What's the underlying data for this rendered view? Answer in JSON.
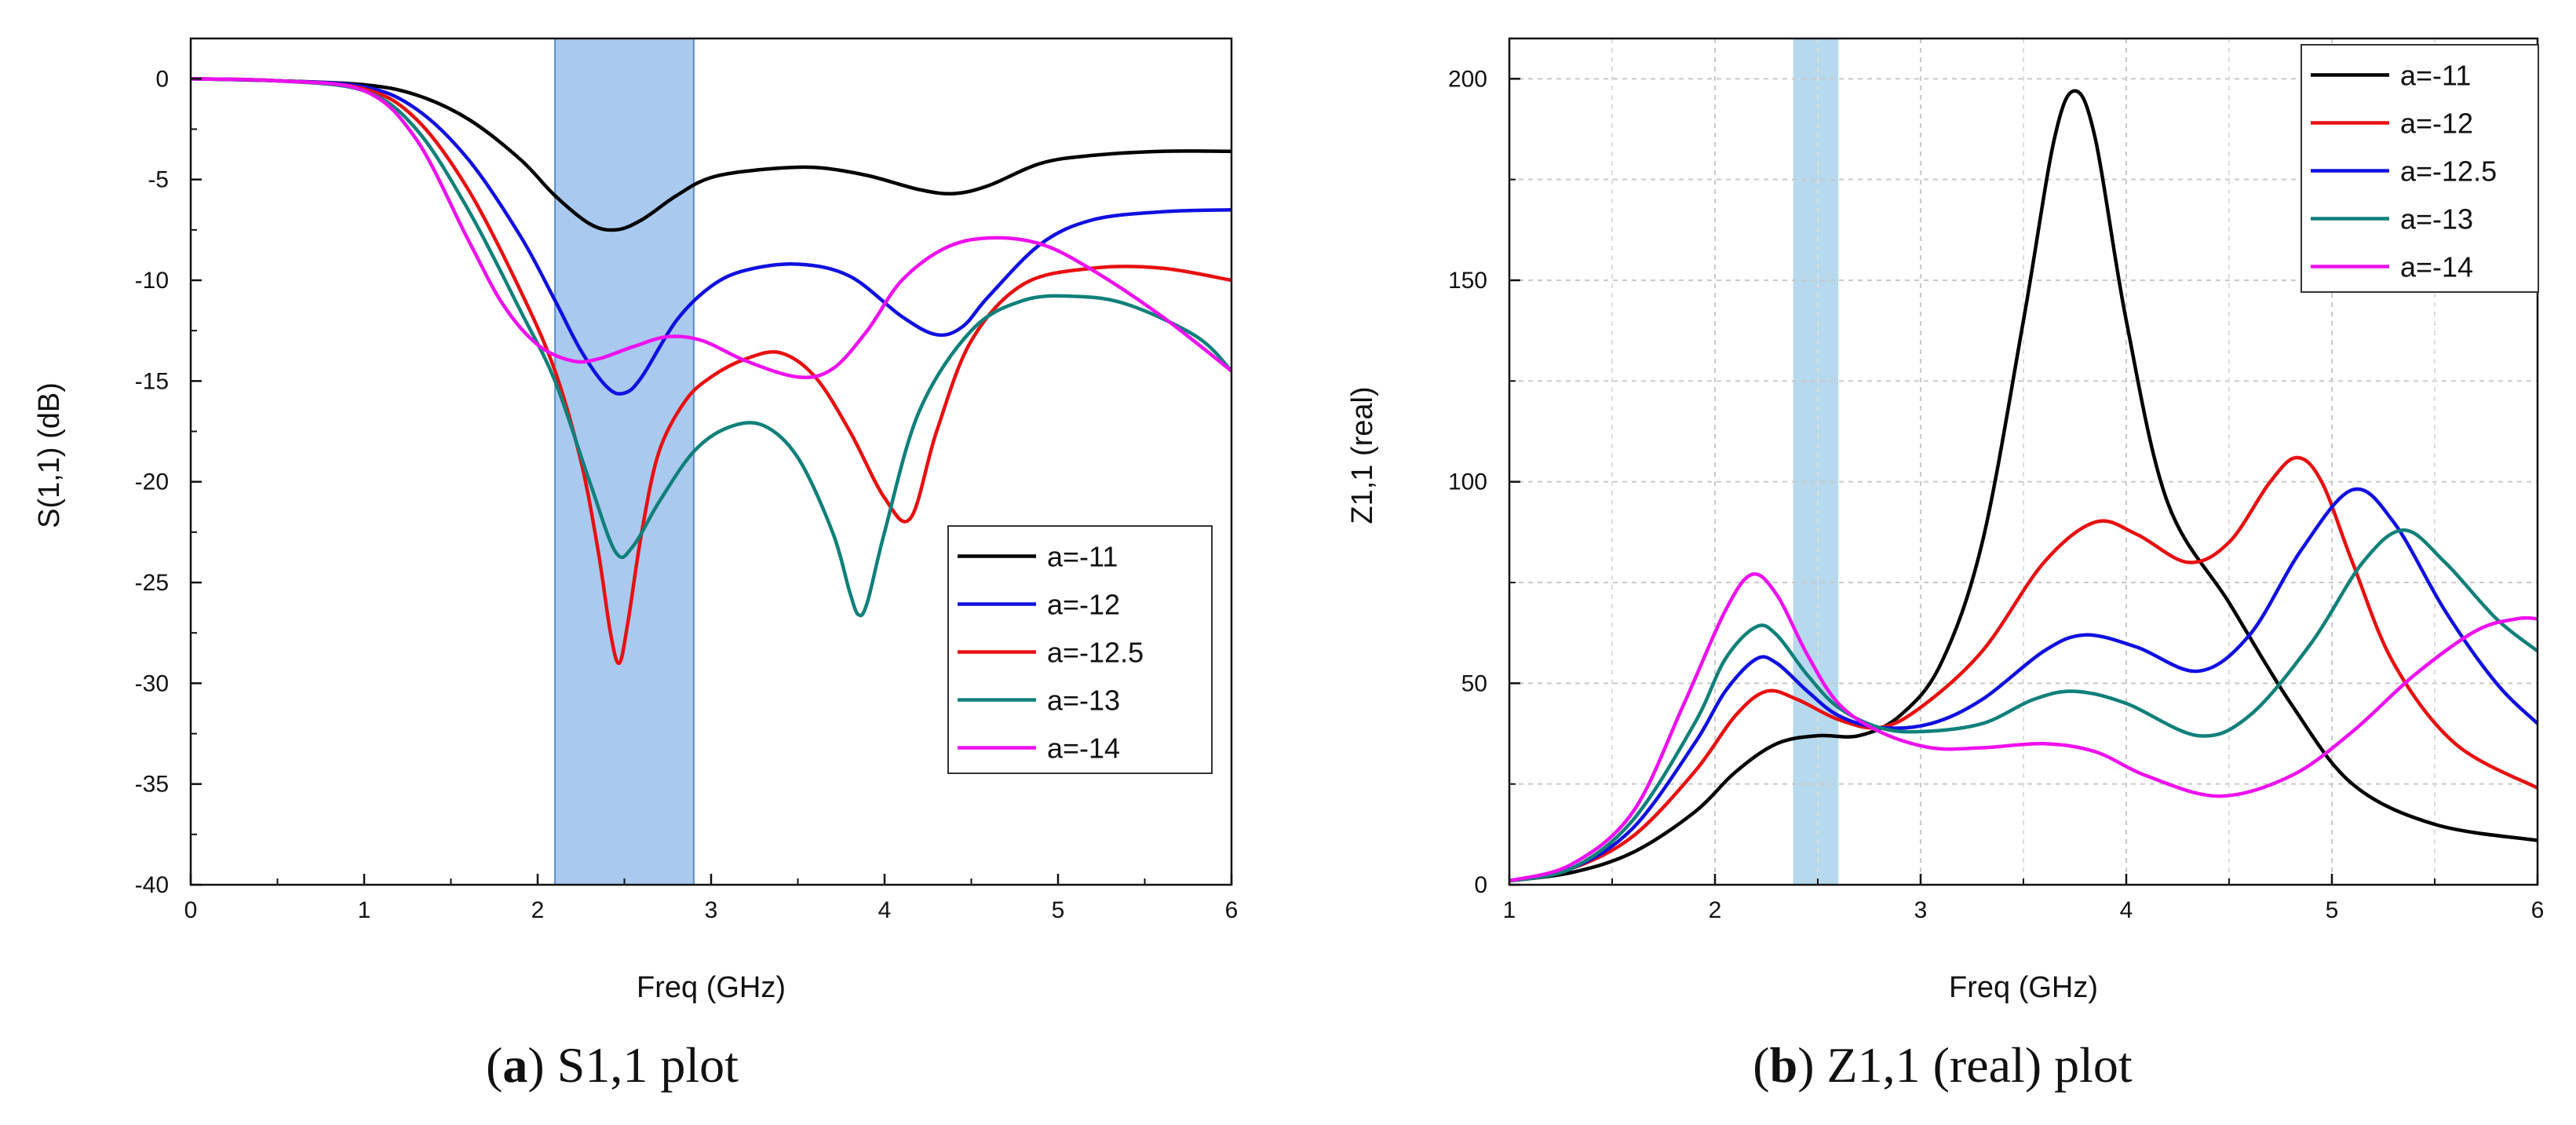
{
  "chart_data": [
    {
      "type": "line",
      "caption_letter": "a",
      "caption_text": "S1,1 plot",
      "xlabel": "Freq (GHz)",
      "ylabel": "S(1,1) (dB)",
      "xlim": [
        0,
        6
      ],
      "ylim": [
        -40,
        2
      ],
      "xticks": [
        0,
        1,
        2,
        3,
        4,
        5,
        6
      ],
      "yticks": [
        0,
        -5,
        -10,
        -15,
        -20,
        -25,
        -30,
        -35,
        -40
      ],
      "grid": false,
      "legend_position": "lower-right",
      "band": {
        "x0": 2.1,
        "x1": 2.9,
        "color": "#a9c9ee"
      },
      "series": [
        {
          "name": "a=-11",
          "color": "#000000",
          "x": [
            0,
            0.5,
            1,
            1.3,
            1.6,
            1.9,
            2.1,
            2.3,
            2.45,
            2.6,
            2.8,
            3,
            3.3,
            3.6,
            3.9,
            4.2,
            4.4,
            4.6,
            4.9,
            5.2,
            5.6,
            6
          ],
          "y": [
            0,
            -0.1,
            -0.3,
            -0.8,
            -2,
            -4,
            -5.8,
            -7.2,
            -7.5,
            -7,
            -5.8,
            -4.9,
            -4.5,
            -4.4,
            -4.8,
            -5.5,
            -5.7,
            -5.3,
            -4.2,
            -3.8,
            -3.6,
            -3.6
          ]
        },
        {
          "name": "a=-12",
          "color": "#1010e0",
          "x": [
            0,
            0.5,
            1,
            1.3,
            1.6,
            1.9,
            2.1,
            2.25,
            2.4,
            2.5,
            2.6,
            2.8,
            3,
            3.2,
            3.5,
            3.8,
            4.1,
            4.3,
            4.45,
            4.6,
            4.9,
            5.2,
            5.6,
            6
          ],
          "y": [
            0,
            -0.1,
            -0.4,
            -1.5,
            -4,
            -7.8,
            -11,
            -13.5,
            -15.3,
            -15.6,
            -14.8,
            -12,
            -10.3,
            -9.5,
            -9.2,
            -9.8,
            -11.8,
            -12.7,
            -12.3,
            -10.8,
            -8.2,
            -7,
            -6.6,
            -6.5
          ]
        },
        {
          "name": "a=-12.5",
          "color": "#e81010",
          "x": [
            0,
            0.5,
            1,
            1.3,
            1.6,
            1.9,
            2.1,
            2.25,
            2.35,
            2.42,
            2.47,
            2.52,
            2.6,
            2.7,
            2.85,
            3,
            3.2,
            3.4,
            3.6,
            3.8,
            4,
            4.15,
            4.3,
            4.5,
            4.8,
            5.2,
            5.6,
            6
          ],
          "y": [
            0,
            -0.1,
            -0.5,
            -2,
            -5.5,
            -10.5,
            -14.5,
            -19,
            -23.5,
            -27.5,
            -29,
            -27,
            -22.5,
            -18.5,
            -16,
            -14.8,
            -13.9,
            -13.6,
            -14.8,
            -17.5,
            -20.8,
            -21.8,
            -17.5,
            -13,
            -10.2,
            -9.4,
            -9.4,
            -10
          ]
        },
        {
          "name": "a=-13",
          "color": "#10807a",
          "x": [
            0,
            0.5,
            1,
            1.3,
            1.6,
            1.9,
            2.1,
            2.3,
            2.45,
            2.55,
            2.7,
            2.9,
            3.1,
            3.3,
            3.5,
            3.7,
            3.8,
            3.85,
            3.9,
            4,
            4.2,
            4.5,
            4.8,
            5.1,
            5.4,
            5.8,
            6
          ],
          "y": [
            0,
            -0.1,
            -0.6,
            -2.5,
            -6.5,
            -11.5,
            -15,
            -20,
            -23.5,
            -23.2,
            -21,
            -18.5,
            -17.3,
            -17.2,
            -18.8,
            -22.5,
            -25.5,
            -26.6,
            -26,
            -22.5,
            -16.5,
            -12.5,
            -11,
            -10.8,
            -11.2,
            -12.8,
            -14.5
          ]
        },
        {
          "name": "a=-14",
          "color": "#ee10ee",
          "x": [
            0,
            0.5,
            1,
            1.3,
            1.6,
            1.8,
            2,
            2.2,
            2.35,
            2.55,
            2.75,
            2.95,
            3.2,
            3.5,
            3.7,
            3.9,
            4.1,
            4.35,
            4.6,
            4.9,
            5.2,
            5.6,
            6
          ],
          "y": [
            0,
            -0.1,
            -0.6,
            -3,
            -8,
            -11.2,
            -13.2,
            -14,
            -13.9,
            -13.3,
            -12.8,
            -13,
            -14,
            -14.8,
            -14.4,
            -12.5,
            -10,
            -8.4,
            -7.9,
            -8.2,
            -9.5,
            -11.8,
            -14.5
          ]
        }
      ]
    },
    {
      "type": "line",
      "caption_letter": "b",
      "caption_text": "Z1,1 (real) plot",
      "xlabel": "Freq (GHz)",
      "ylabel": "Z1,1 (real)",
      "xlim": [
        1,
        6
      ],
      "ylim": [
        0,
        210
      ],
      "xticks": [
        1,
        2,
        3,
        4,
        5,
        6
      ],
      "yticks": [
        0,
        50,
        100,
        150,
        200
      ],
      "grid": true,
      "legend_position": "top-right",
      "band": {
        "x0": 2.38,
        "x1": 2.6,
        "color": "#b6d9ee"
      },
      "series": [
        {
          "name": "a=-11",
          "color": "#000000",
          "x": [
            1,
            1.3,
            1.6,
            1.9,
            2.1,
            2.3,
            2.5,
            2.7,
            2.9,
            3.1,
            3.3,
            3.5,
            3.65,
            3.75,
            3.85,
            4,
            4.2,
            4.5,
            4.8,
            5.1,
            5.5,
            6
          ],
          "y": [
            1,
            3,
            8,
            18,
            28,
            35,
            37,
            37,
            42,
            55,
            85,
            140,
            185,
            197,
            185,
            140,
            95,
            70,
            45,
            25,
            15,
            11
          ]
        },
        {
          "name": "a=-12",
          "color": "#e81010",
          "x": [
            1,
            1.3,
            1.6,
            1.9,
            2.1,
            2.25,
            2.4,
            2.6,
            2.8,
            3,
            3.3,
            3.6,
            3.85,
            4.05,
            4.3,
            4.5,
            4.7,
            4.83,
            4.95,
            5.1,
            5.3,
            5.6,
            6
          ],
          "y": [
            1,
            4,
            12,
            28,
            42,
            48,
            46,
            41,
            39,
            44,
            58,
            80,
            90,
            87,
            80,
            85,
            100,
            106,
            100,
            80,
            55,
            35,
            24
          ]
        },
        {
          "name": "a=-12.5",
          "color": "#1010e0",
          "x": [
            1,
            1.3,
            1.6,
            1.9,
            2.05,
            2.2,
            2.3,
            2.45,
            2.6,
            2.8,
            3.05,
            3.3,
            3.6,
            3.8,
            4.05,
            4.35,
            4.6,
            4.85,
            5.1,
            5.3,
            5.55,
            5.8,
            6
          ],
          "y": [
            1,
            4,
            14,
            35,
            48,
            56,
            55,
            48,
            42,
            39,
            40,
            46,
            58,
            62,
            59,
            53,
            62,
            83,
            98,
            90,
            68,
            50,
            40
          ]
        },
        {
          "name": "a=-13",
          "color": "#10807a",
          "x": [
            1,
            1.3,
            1.6,
            1.9,
            2.05,
            2.2,
            2.3,
            2.45,
            2.6,
            2.8,
            3,
            3.3,
            3.55,
            3.75,
            4,
            4.35,
            4.6,
            4.9,
            5.15,
            5.35,
            5.55,
            5.8,
            6
          ],
          "y": [
            1,
            4,
            16,
            40,
            56,
            64,
            62,
            52,
            44,
            39,
            38,
            40,
            46,
            48,
            45,
            37,
            42,
            60,
            80,
            88,
            80,
            66,
            58
          ]
        },
        {
          "name": "a=-14",
          "color": "#ee10ee",
          "x": [
            1,
            1.3,
            1.6,
            1.85,
            2.05,
            2.18,
            2.3,
            2.45,
            2.6,
            2.8,
            3.05,
            3.3,
            3.6,
            3.85,
            4.1,
            4.45,
            4.8,
            5.1,
            5.4,
            5.7,
            5.9,
            6
          ],
          "y": [
            1,
            5,
            18,
            45,
            68,
            77,
            72,
            57,
            45,
            38,
            34,
            34,
            35,
            33,
            27,
            22,
            27,
            38,
            52,
            63,
            66,
            66
          ]
        }
      ]
    }
  ]
}
